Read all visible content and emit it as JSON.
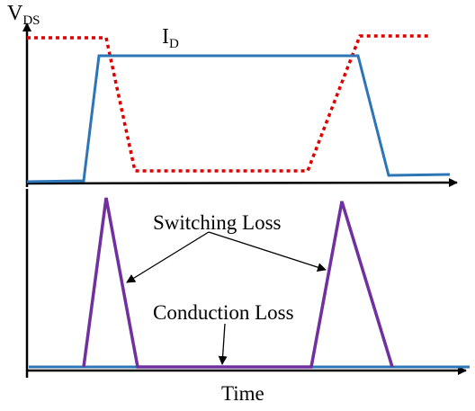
{
  "labels": {
    "vds_main": "V",
    "vds_sub": "DS",
    "id_main": "I",
    "id_sub": "D",
    "switching_loss": "Switching Loss",
    "conduction_loss": "Conduction Loss",
    "time": "Time"
  },
  "colors": {
    "axes": "#000000",
    "current_id": "#2e75b6",
    "voltage_vds": "#e00000",
    "loss": "#7030a0",
    "conduction_line": "#2e75b6"
  }
}
